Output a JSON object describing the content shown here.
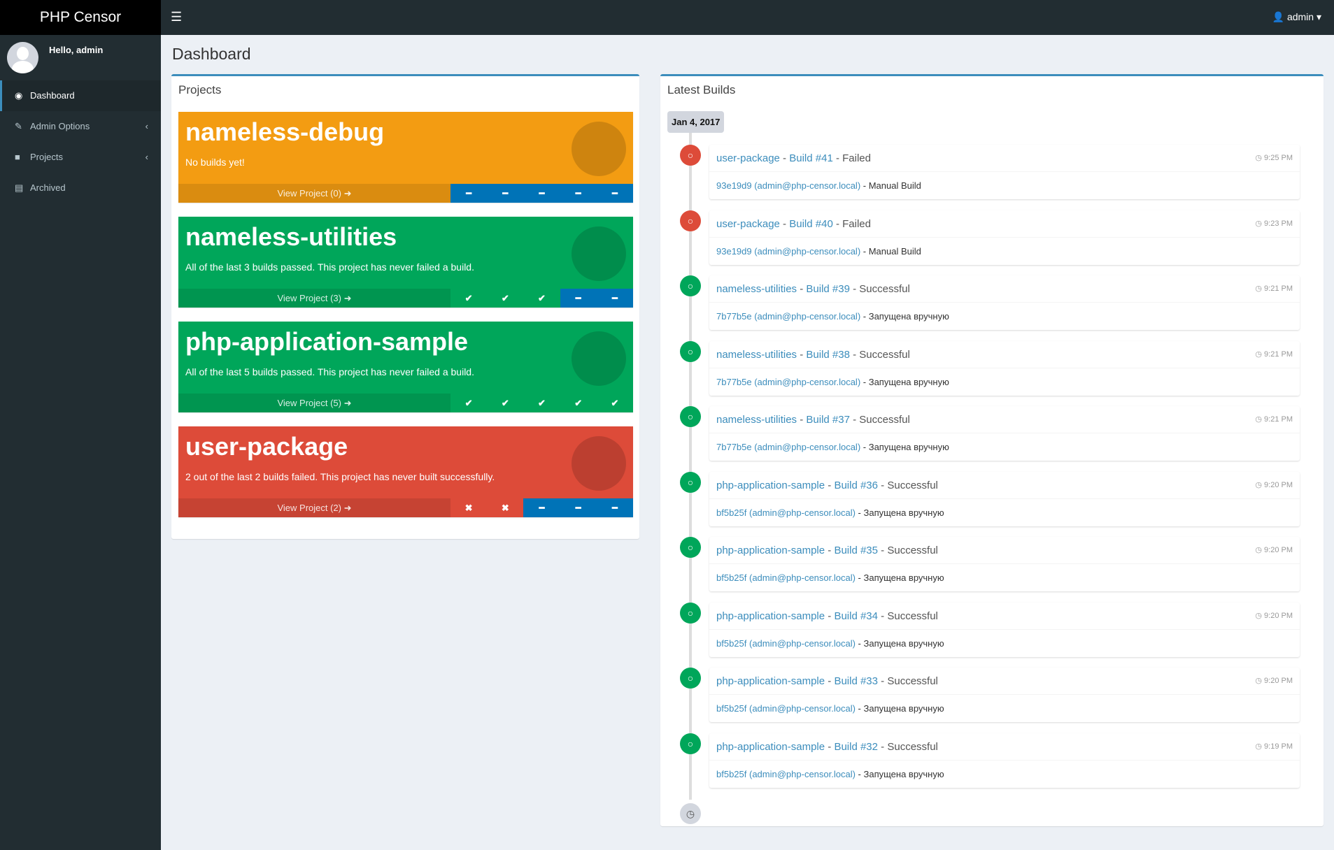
{
  "app": {
    "brand": "PHP Censor",
    "menu_icon": "hamburger-icon",
    "user": "admin"
  },
  "sidebar": {
    "hello": "Hello, admin",
    "items": [
      {
        "label": "Dashboard",
        "icon": "dashboard-icon",
        "active": true
      },
      {
        "label": "Admin Options",
        "icon": "edit-icon",
        "chevron": true
      },
      {
        "label": "Projects",
        "icon": "folder-icon",
        "chevron": true
      },
      {
        "label": "Archived",
        "icon": "archive-icon"
      }
    ]
  },
  "page": {
    "title": "Dashboard"
  },
  "projects": {
    "title": "Projects",
    "items": [
      {
        "name": "nameless-debug",
        "desc": "No builds yet!",
        "view": "View Project (0)",
        "color": "#f39c12",
        "statuses": [
          "none",
          "none",
          "none",
          "none",
          "none"
        ]
      },
      {
        "name": "nameless-utilities",
        "desc": "All of the last 3 builds passed. This project has never failed a build.",
        "view": "View Project (3)",
        "color": "#00a65a",
        "statuses": [
          "ok",
          "ok",
          "ok",
          "none",
          "none"
        ]
      },
      {
        "name": "php-application-sample",
        "desc": "All of the last 5 builds passed. This project has never failed a build.",
        "view": "View Project (5)",
        "color": "#00a65a",
        "statuses": [
          "ok",
          "ok",
          "ok",
          "ok",
          "ok"
        ]
      },
      {
        "name": "user-package",
        "desc": "2 out of the last 2 builds failed. This project has never built successfully.",
        "view": "View Project (2)",
        "color": "#dd4b39",
        "statuses": [
          "fail",
          "fail",
          "none",
          "none",
          "none"
        ]
      }
    ]
  },
  "builds": {
    "title": "Latest Builds",
    "date": "Jan 4, 2017",
    "items": [
      {
        "project": "user-package",
        "build": "Build #41",
        "status": "Failed",
        "time": "9:25 PM",
        "commit": "93e19d9 (admin@php-censor.local)",
        "source": "Manual Build",
        "color": "#dd4b39"
      },
      {
        "project": "user-package",
        "build": "Build #40",
        "status": "Failed",
        "time": "9:23 PM",
        "commit": "93e19d9 (admin@php-censor.local)",
        "source": "Manual Build",
        "color": "#dd4b39"
      },
      {
        "project": "nameless-utilities",
        "build": "Build #39",
        "status": "Successful",
        "time": "9:21 PM",
        "commit": "7b77b5e (admin@php-censor.local)",
        "source": "Запущена вручную",
        "color": "#00a65a"
      },
      {
        "project": "nameless-utilities",
        "build": "Build #38",
        "status": "Successful",
        "time": "9:21 PM",
        "commit": "7b77b5e (admin@php-censor.local)",
        "source": "Запущена вручную",
        "color": "#00a65a"
      },
      {
        "project": "nameless-utilities",
        "build": "Build #37",
        "status": "Successful",
        "time": "9:21 PM",
        "commit": "7b77b5e (admin@php-censor.local)",
        "source": "Запущена вручную",
        "color": "#00a65a"
      },
      {
        "project": "php-application-sample",
        "build": "Build #36",
        "status": "Successful",
        "time": "9:20 PM",
        "commit": "bf5b25f (admin@php-censor.local)",
        "source": "Запущена вручную",
        "color": "#00a65a"
      },
      {
        "project": "php-application-sample",
        "build": "Build #35",
        "status": "Successful",
        "time": "9:20 PM",
        "commit": "bf5b25f (admin@php-censor.local)",
        "source": "Запущена вручную",
        "color": "#00a65a"
      },
      {
        "project": "php-application-sample",
        "build": "Build #34",
        "status": "Successful",
        "time": "9:20 PM",
        "commit": "bf5b25f (admin@php-censor.local)",
        "source": "Запущена вручную",
        "color": "#00a65a"
      },
      {
        "project": "php-application-sample",
        "build": "Build #33",
        "status": "Successful",
        "time": "9:20 PM",
        "commit": "bf5b25f (admin@php-censor.local)",
        "source": "Запущена вручную",
        "color": "#00a65a"
      },
      {
        "project": "php-application-sample",
        "build": "Build #32",
        "status": "Successful",
        "time": "9:19 PM",
        "commit": "bf5b25f (admin@php-censor.local)",
        "source": "Запущена вручную",
        "color": "#00a65a"
      }
    ]
  }
}
